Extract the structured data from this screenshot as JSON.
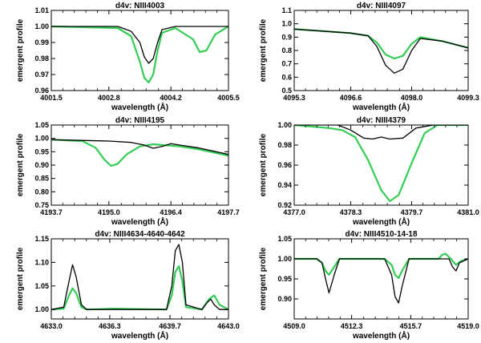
{
  "colors": {
    "black_series": "#000000",
    "green_series": "#33cc55",
    "axes": "#000000"
  },
  "chart_data": [
    {
      "type": "line",
      "title": "d4v: NIII4003",
      "xlabel": "wavelength (Å)",
      "ylabel": "emergent profile",
      "xlim": [
        4001.5,
        4005.5
      ],
      "ylim": [
        0.96,
        1.01
      ],
      "xticks": [
        4001.5,
        4002.8,
        4004.2,
        4005.5
      ],
      "xtick_labels": [
        "4001.5",
        "4002.8",
        "4004.2",
        "4005.5"
      ],
      "yticks": [
        0.96,
        0.97,
        0.98,
        0.99,
        1.0,
        1.01
      ],
      "ytick_labels": [
        "0.96",
        "0.97",
        "0.98",
        "0.99",
        "1.00",
        "1.01"
      ],
      "series": [
        {
          "name": "black",
          "x": [
            4001.5,
            4003.0,
            4003.3,
            4003.5,
            4003.6,
            4003.7,
            4003.8,
            4003.9,
            4004.0,
            4004.3,
            4005.0,
            4005.5
          ],
          "y": [
            1.0,
            1.0,
            0.997,
            0.99,
            0.981,
            0.977,
            0.98,
            0.99,
            0.998,
            1.0,
            1.0,
            1.0
          ]
        },
        {
          "name": "green",
          "x": [
            4001.5,
            4003.0,
            4003.3,
            4003.5,
            4003.6,
            4003.7,
            4003.8,
            4003.9,
            4004.0,
            4004.3,
            4004.7,
            4004.85,
            4005.0,
            4005.2,
            4005.5
          ],
          "y": [
            1.0,
            0.999,
            0.994,
            0.978,
            0.968,
            0.965,
            0.97,
            0.985,
            0.996,
            0.999,
            0.992,
            0.984,
            0.985,
            0.995,
            1.0
          ]
        }
      ]
    },
    {
      "type": "line",
      "title": "d4v: NIII4097",
      "xlabel": "wavelength (Å)",
      "ylabel": "emergent profile",
      "xlim": [
        4095.3,
        4099.3
      ],
      "ylim": [
        0.5,
        1.1
      ],
      "xticks": [
        4095.3,
        4096.6,
        4098.0,
        4099.3
      ],
      "xtick_labels": [
        "4095.3",
        "4096.6",
        "4098.0",
        "4099.3"
      ],
      "yticks": [
        0.5,
        0.6,
        0.7,
        0.8,
        0.9,
        1.0,
        1.1
      ],
      "ytick_labels": [
        "0.5",
        "0.6",
        "0.7",
        "0.8",
        "0.9",
        "1.0",
        "1.1"
      ],
      "series": [
        {
          "name": "black",
          "x": [
            4095.3,
            4096.6,
            4097.0,
            4097.2,
            4097.4,
            4097.6,
            4097.8,
            4098.0,
            4098.2,
            4098.7,
            4099.3
          ],
          "y": [
            0.96,
            0.93,
            0.91,
            0.83,
            0.69,
            0.63,
            0.66,
            0.8,
            0.89,
            0.87,
            0.82
          ]
        },
        {
          "name": "green",
          "x": [
            4095.3,
            4096.6,
            4097.0,
            4097.2,
            4097.4,
            4097.6,
            4097.8,
            4098.0,
            4098.2,
            4098.7,
            4099.3
          ],
          "y": [
            0.96,
            0.93,
            0.91,
            0.86,
            0.77,
            0.74,
            0.76,
            0.85,
            0.9,
            0.87,
            0.82
          ]
        }
      ]
    },
    {
      "type": "line",
      "title": "d4v: NIII4195",
      "xlabel": "wavelength (Å)",
      "ylabel": "emergent profile",
      "xlim": [
        4193.7,
        4197.7
      ],
      "ylim": [
        0.75,
        1.05
      ],
      "xticks": [
        4193.7,
        4195.0,
        4196.4,
        4197.7
      ],
      "xtick_labels": [
        "4193.7",
        "4195.0",
        "4196.4",
        "4197.7"
      ],
      "yticks": [
        0.75,
        0.8,
        0.85,
        0.9,
        0.95,
        1.0,
        1.05
      ],
      "ytick_labels": [
        "0.75",
        "0.80",
        "0.85",
        "0.90",
        "0.95",
        "1.00",
        "1.05"
      ],
      "series": [
        {
          "name": "black",
          "x": [
            4193.7,
            4195.0,
            4195.5,
            4195.8,
            4196.0,
            4196.2,
            4196.4,
            4196.6,
            4197.0,
            4197.7
          ],
          "y": [
            0.995,
            0.99,
            0.985,
            0.975,
            0.963,
            0.97,
            0.98,
            0.975,
            0.965,
            0.94
          ]
        },
        {
          "name": "green",
          "x": [
            4193.7,
            4194.4,
            4194.7,
            4194.9,
            4195.05,
            4195.2,
            4195.4,
            4195.7,
            4196.0,
            4196.6,
            4197.0,
            4197.7
          ],
          "y": [
            0.995,
            0.99,
            0.965,
            0.92,
            0.897,
            0.905,
            0.94,
            0.97,
            0.978,
            0.97,
            0.96,
            0.935
          ]
        }
      ]
    },
    {
      "type": "line",
      "title": "d4v: NIII4379",
      "xlabel": "wavelength (Å)",
      "ylabel": "emergent profile",
      "xlim": [
        4377.0,
        4381.0
      ],
      "ylim": [
        0.92,
        1.0
      ],
      "xticks": [
        4377.0,
        4378.3,
        4379.7,
        4381.0
      ],
      "xtick_labels": [
        "4377.0",
        "4378.3",
        "4379.7",
        "4381.0"
      ],
      "yticks": [
        0.92,
        0.94,
        0.96,
        0.98,
        1.0
      ],
      "ytick_labels": [
        "0.92",
        "0.94",
        "0.96",
        "0.98",
        "1.00"
      ],
      "series": [
        {
          "name": "black",
          "x": [
            4377.0,
            4378.0,
            4378.3,
            4378.6,
            4378.8,
            4379.0,
            4379.2,
            4379.5,
            4379.8,
            4380.2,
            4381.0
          ],
          "y": [
            1.0,
            1.0,
            0.995,
            0.987,
            0.986,
            0.988,
            0.986,
            0.987,
            0.997,
            1.0,
            1.0
          ]
        },
        {
          "name": "green",
          "x": [
            4377.0,
            4377.8,
            4378.1,
            4378.4,
            4378.7,
            4379.0,
            4379.2,
            4379.4,
            4379.7,
            4380.0,
            4380.3,
            4380.6,
            4381.0
          ],
          "y": [
            1.0,
            0.997,
            0.995,
            0.988,
            0.965,
            0.935,
            0.924,
            0.93,
            0.962,
            0.992,
            1.0,
            1.0,
            1.0
          ]
        }
      ]
    },
    {
      "type": "line",
      "title": "d4v: NIII4634-4640-4642",
      "xlabel": "wavelength (Å)",
      "ylabel": "emergent profile",
      "xlim": [
        4633.0,
        4643.0
      ],
      "ylim": [
        0.98,
        1.15
      ],
      "xticks": [
        4633.0,
        4636.3,
        4639.7,
        4643.0
      ],
      "xtick_labels": [
        "4633.0",
        "4636.3",
        "4639.7",
        "4643.0"
      ],
      "yticks": [
        1.0,
        1.05,
        1.1,
        1.15
      ],
      "ytick_labels": [
        "1.00",
        "1.05",
        "1.10",
        "1.15"
      ],
      "series": [
        {
          "name": "black",
          "x": [
            4633.0,
            4633.7,
            4634.0,
            4634.2,
            4634.4,
            4634.7,
            4635.0,
            4639.5,
            4639.8,
            4640.0,
            4640.2,
            4640.4,
            4640.6,
            4641.5,
            4641.8,
            4642.0,
            4642.2,
            4642.5,
            4643.0
          ],
          "y": [
            1.0,
            1.005,
            1.06,
            1.095,
            1.07,
            1.01,
            1.0,
            1.0,
            1.05,
            1.125,
            1.138,
            1.1,
            1.01,
            1.0,
            1.015,
            1.022,
            1.01,
            1.0,
            1.0
          ]
        },
        {
          "name": "green",
          "x": [
            4633.0,
            4633.7,
            4634.0,
            4634.2,
            4634.4,
            4634.7,
            4635.0,
            4636.5,
            4639.5,
            4639.8,
            4640.0,
            4640.2,
            4640.4,
            4640.6,
            4641.5,
            4641.9,
            4642.2,
            4642.5,
            4643.0
          ],
          "y": [
            1.0,
            1.002,
            1.03,
            1.045,
            1.035,
            1.005,
            1.0,
            1.002,
            1.0,
            1.03,
            1.08,
            1.092,
            1.06,
            1.005,
            1.0,
            1.022,
            1.03,
            1.01,
            1.0
          ]
        }
      ]
    },
    {
      "type": "line",
      "title": "d4v: NIII4510-14-18",
      "xlabel": "wavelength (Å)",
      "ylabel": "emergent profile",
      "xlim": [
        4509.0,
        4519.0
      ],
      "ylim": [
        0.85,
        1.05
      ],
      "xticks": [
        4509.0,
        4512.3,
        4515.7,
        4519.0
      ],
      "xtick_labels": [
        "4509.0",
        "4512.3",
        "4515.7",
        "4519.0"
      ],
      "yticks": [
        0.9,
        0.95,
        1.0,
        1.05
      ],
      "ytick_labels": [
        "0.90",
        "0.95",
        "1.00",
        "1.05"
      ],
      "series": [
        {
          "name": "black",
          "x": [
            4509.0,
            4510.3,
            4510.6,
            4510.8,
            4511.0,
            4511.3,
            4511.6,
            4514.2,
            4514.6,
            4514.8,
            4515.0,
            4515.2,
            4515.6,
            4517.9,
            4518.1,
            4518.3,
            4518.5,
            4519.0
          ],
          "y": [
            1.0,
            1.0,
            0.99,
            0.95,
            0.915,
            0.96,
            1.0,
            1.0,
            0.96,
            0.905,
            0.89,
            0.93,
            1.0,
            1.0,
            0.98,
            0.97,
            0.99,
            1.0
          ]
        },
        {
          "name": "green",
          "x": [
            4509.0,
            4510.3,
            4510.6,
            4510.8,
            4511.0,
            4511.3,
            4511.6,
            4514.2,
            4514.6,
            4514.8,
            4515.0,
            4515.2,
            4515.6,
            4517.3,
            4517.5,
            4517.7,
            4518.0,
            4518.3,
            4518.6,
            4519.0
          ],
          "y": [
            1.0,
            1.0,
            0.99,
            0.97,
            0.96,
            0.98,
            1.0,
            1.0,
            0.985,
            0.96,
            0.952,
            0.97,
            1.0,
            1.0,
            1.01,
            1.013,
            1.0,
            0.985,
            0.995,
            1.0
          ]
        }
      ]
    }
  ]
}
